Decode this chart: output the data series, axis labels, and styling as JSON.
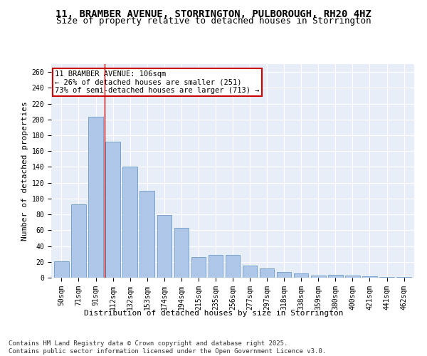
{
  "title": "11, BRAMBER AVENUE, STORRINGTON, PULBOROUGH, RH20 4HZ",
  "subtitle": "Size of property relative to detached houses in Storrington",
  "xlabel": "Distribution of detached houses by size in Storrington",
  "ylabel": "Number of detached properties",
  "categories": [
    "50sqm",
    "71sqm",
    "91sqm",
    "112sqm",
    "132sqm",
    "153sqm",
    "174sqm",
    "194sqm",
    "215sqm",
    "235sqm",
    "256sqm",
    "277sqm",
    "297sqm",
    "318sqm",
    "338sqm",
    "359sqm",
    "380sqm",
    "400sqm",
    "421sqm",
    "441sqm",
    "462sqm"
  ],
  "values": [
    21,
    93,
    203,
    172,
    140,
    110,
    79,
    63,
    26,
    29,
    29,
    15,
    12,
    7,
    5,
    3,
    4,
    3,
    2,
    1,
    1
  ],
  "bar_color": "#aec6e8",
  "bar_edge_color": "#5a8fc0",
  "vline_x": 2.5,
  "vline_color": "#cc0000",
  "annotation_title": "11 BRAMBER AVENUE: 106sqm",
  "annotation_line1": "← 26% of detached houses are smaller (251)",
  "annotation_line2": "73% of semi-detached houses are larger (713) →",
  "box_color": "#cc0000",
  "ylim": [
    0,
    270
  ],
  "yticks": [
    0,
    20,
    40,
    60,
    80,
    100,
    120,
    140,
    160,
    180,
    200,
    220,
    240,
    260
  ],
  "footnote1": "Contains HM Land Registry data © Crown copyright and database right 2025.",
  "footnote2": "Contains public sector information licensed under the Open Government Licence v3.0.",
  "bg_color": "#e8eef8",
  "title_fontsize": 10,
  "subtitle_fontsize": 9,
  "axis_fontsize": 8,
  "tick_fontsize": 7,
  "annot_fontsize": 7.5,
  "footnote_fontsize": 6.5
}
